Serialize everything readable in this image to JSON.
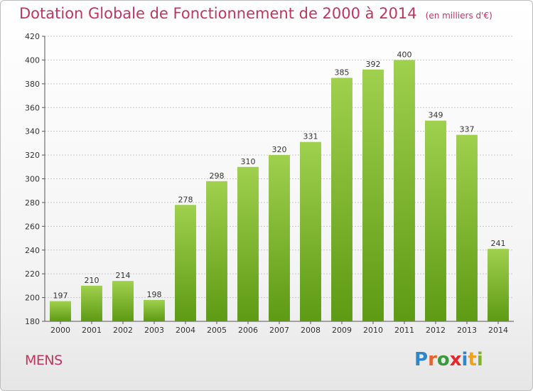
{
  "header": {
    "title": "Dotation Globale de Fonctionnement de 2000 à 2014",
    "unit": "(en milliers d'€)"
  },
  "footer": {
    "commune": "MENS",
    "logo": [
      "P",
      "r",
      "o",
      "x",
      "i",
      "t",
      "i"
    ],
    "logo_colors": [
      "#2f86c9",
      "#e8622a",
      "#3a9a3a",
      "#e8262a",
      "#2f86c9",
      "#f0a21a",
      "#7cb526"
    ]
  },
  "chart_data": {
    "type": "bar",
    "categories": [
      "2000",
      "2001",
      "2002",
      "2003",
      "2004",
      "2005",
      "2006",
      "2007",
      "2008",
      "2009",
      "2010",
      "2011",
      "2012",
      "2013",
      "2014"
    ],
    "values": [
      197,
      210,
      214,
      198,
      278,
      298,
      310,
      320,
      331,
      385,
      392,
      400,
      349,
      337,
      241
    ],
    "ylim": [
      180,
      420
    ],
    "yticks": [
      180,
      200,
      220,
      240,
      260,
      280,
      300,
      320,
      340,
      360,
      380,
      400,
      420
    ],
    "grid": true,
    "bar_color_top": "#9fd04e",
    "bar_color_bottom": "#5e9a14",
    "title_color": "#c0345e"
  }
}
